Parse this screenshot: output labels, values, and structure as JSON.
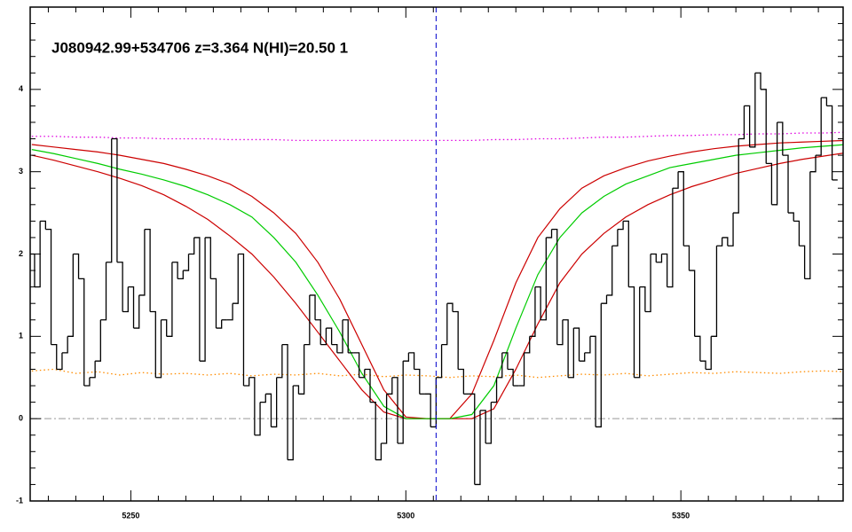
{
  "chart_data": {
    "type": "spectrum",
    "title": "J080942.99+534706 z=3.364 N(HI)=20.50 1",
    "xlim": [
      5231.7,
      5379.5
    ],
    "ylim": [
      -1,
      5
    ],
    "xticks": [
      5250,
      5300,
      5350
    ],
    "yticks": [
      -1,
      0,
      1,
      2,
      3,
      4
    ],
    "xminorticks": [
      5235,
      5240,
      5245,
      5255,
      5260,
      5265,
      5270,
      5275,
      5280,
      5285,
      5290,
      5295,
      5305,
      5310,
      5315,
      5320,
      5325,
      5330,
      5335,
      5340,
      5345,
      5355,
      5360,
      5365,
      5370,
      5375
    ],
    "yminorticks": [
      -0.8,
      -0.6,
      -0.4,
      -0.2,
      0.2,
      0.4,
      0.6,
      0.8,
      1.2,
      1.4,
      1.6,
      1.8,
      2.2,
      2.4,
      2.6,
      2.8,
      3.2,
      3.4,
      3.6,
      3.8,
      4.2,
      4.4,
      4.6,
      4.8
    ],
    "flux": {
      "color": "#000000",
      "x": [
        5232,
        5233,
        5234,
        5235,
        5236,
        5237,
        5238,
        5239,
        5240,
        5241,
        5242,
        5243,
        5244,
        5245,
        5246,
        5247,
        5248,
        5249,
        5250,
        5251,
        5252,
        5253,
        5254,
        5255,
        5256,
        5257,
        5258,
        5259,
        5260,
        5261,
        5262,
        5263,
        5264,
        5265,
        5266,
        5267,
        5268,
        5269,
        5270,
        5271,
        5272,
        5273,
        5274,
        5275,
        5276,
        5277,
        5278,
        5279,
        5280,
        5281,
        5282,
        5283,
        5284,
        5285,
        5286,
        5287,
        5288,
        5289,
        5290,
        5291,
        5292,
        5293,
        5294,
        5295,
        5296,
        5297,
        5298,
        5299,
        5300,
        5301,
        5302,
        5303,
        5304,
        5305,
        5306,
        5307,
        5308,
        5309,
        5310,
        5311,
        5312,
        5313,
        5314,
        5315,
        5316,
        5317,
        5318,
        5319,
        5320,
        5321,
        5322,
        5323,
        5324,
        5325,
        5326,
        5327,
        5328,
        5329,
        5330,
        5331,
        5332,
        5333,
        5334,
        5335,
        5336,
        5337,
        5338,
        5339,
        5340,
        5341,
        5342,
        5343,
        5344,
        5345,
        5346,
        5347,
        5348,
        5349,
        5350,
        5351,
        5352,
        5353,
        5354,
        5355,
        5356,
        5357,
        5358,
        5359,
        5360,
        5361,
        5362,
        5363,
        5364,
        5365,
        5366,
        5367,
        5368,
        5369,
        5370,
        5371,
        5372,
        5373,
        5374,
        5375,
        5376,
        5377,
        5378
      ],
      "values": [
        2.0,
        1.6,
        2.4,
        2.3,
        0.9,
        0.6,
        0.8,
        1.0,
        2.0,
        1.7,
        0.4,
        0.5,
        0.7,
        1.2,
        1.9,
        3.4,
        1.9,
        1.3,
        1.6,
        1.1,
        1.5,
        2.3,
        1.3,
        0.5,
        1.2,
        1.0,
        1.9,
        1.7,
        1.8,
        2.0,
        2.2,
        0.7,
        2.2,
        1.7,
        1.1,
        1.2,
        1.2,
        1.4,
        2.0,
        0.4,
        0.5,
        -0.2,
        0.2,
        0.3,
        -0.1,
        0.5,
        0.9,
        -0.5,
        0.4,
        0.3,
        0.9,
        1.5,
        1.2,
        0.9,
        1.1,
        0.9,
        0.8,
        1.2,
        0.8,
        0.8,
        0.5,
        0.6,
        0.2,
        -0.5,
        -0.3,
        0.3,
        0.5,
        -0.3,
        0.7,
        0.8,
        0.6,
        0.3,
        0.3,
        -0.1,
        0.5,
        0.9,
        1.4,
        1.3,
        0.6,
        0.3,
        0.3,
        -0.8,
        0.1,
        -0.3,
        0.2,
        0.5,
        0.8,
        0.6,
        0.4,
        0.4,
        0.8,
        1.0,
        1.6,
        1.2,
        2.2,
        2.3,
        0.9,
        1.2,
        0.5,
        1.1,
        0.7,
        0.8,
        1.0,
        -0.1,
        1.4,
        1.5,
        2.1,
        2.3,
        2.4,
        1.6,
        0.5,
        1.6,
        1.3,
        2.0,
        1.9,
        2.0,
        1.6,
        2.8,
        3.0,
        2.1,
        1.8,
        1.0,
        0.7,
        0.6,
        1.0,
        2.1,
        2.2,
        2.1,
        2.5,
        3.4,
        3.8,
        3.3,
        4.2,
        4.0,
        3.1,
        2.6,
        3.6,
        3.2,
        2.5,
        2.4,
        2.1,
        1.7,
        3.0,
        3.2,
        3.9,
        3.8,
        2.9
      ]
    },
    "models": {
      "x": [
        5232,
        5236,
        5240,
        5244,
        5248,
        5252,
        5256,
        5260,
        5264,
        5268,
        5272,
        5276,
        5280,
        5284,
        5288,
        5292,
        5296,
        5300,
        5304,
        5308,
        5312,
        5316,
        5320,
        5324,
        5328,
        5332,
        5336,
        5340,
        5344,
        5348,
        5352,
        5356,
        5360,
        5364,
        5368,
        5372,
        5376,
        5380
      ],
      "series": [
        {
          "color": "#e000e0",
          "style": "dotted",
          "values": [
            3.43,
            3.43,
            3.42,
            3.42,
            3.41,
            3.41,
            3.4,
            3.4,
            3.4,
            3.39,
            3.39,
            3.39,
            3.38,
            3.38,
            3.38,
            3.38,
            3.38,
            3.38,
            3.38,
            3.38,
            3.38,
            3.39,
            3.39,
            3.4,
            3.4,
            3.41,
            3.42,
            3.42,
            3.43,
            3.44,
            3.44,
            3.45,
            3.45,
            3.46,
            3.46,
            3.47,
            3.47,
            3.48
          ]
        },
        {
          "color": "#ff8c00",
          "style": "dotted",
          "values": [
            0.58,
            0.6,
            0.55,
            0.57,
            0.53,
            0.56,
            0.54,
            0.55,
            0.53,
            0.55,
            0.52,
            0.54,
            0.53,
            0.55,
            0.52,
            0.54,
            0.51,
            0.53,
            0.52,
            0.5,
            0.52,
            0.51,
            0.53,
            0.5,
            0.52,
            0.54,
            0.53,
            0.55,
            0.52,
            0.54,
            0.56,
            0.55,
            0.57,
            0.56,
            0.55,
            0.57,
            0.58,
            0.57
          ]
        },
        {
          "color": "#cc0000",
          "style": "solid",
          "values": [
            3.33,
            3.3,
            3.27,
            3.24,
            3.2,
            3.15,
            3.1,
            3.03,
            2.95,
            2.85,
            2.7,
            2.5,
            2.25,
            1.9,
            1.45,
            0.9,
            0.35,
            0.02,
            0,
            0,
            0.3,
            0.95,
            1.65,
            2.2,
            2.55,
            2.8,
            2.95,
            3.05,
            3.13,
            3.19,
            3.24,
            3.28,
            3.31,
            3.33,
            3.35,
            3.36,
            3.37,
            3.38
          ]
        },
        {
          "color": "#cc0000",
          "style": "solid",
          "values": [
            3.2,
            3.14,
            3.07,
            3.0,
            2.92,
            2.83,
            2.72,
            2.58,
            2.42,
            2.22,
            2.0,
            1.72,
            1.4,
            1.05,
            0.7,
            0.35,
            0.08,
            0,
            0,
            0,
            0,
            0.12,
            0.6,
            1.15,
            1.65,
            2.0,
            2.25,
            2.45,
            2.6,
            2.72,
            2.82,
            2.9,
            2.98,
            3.04,
            3.1,
            3.15,
            3.19,
            3.23
          ]
        },
        {
          "color": "#00cc00",
          "style": "solid",
          "values": [
            3.27,
            3.22,
            3.16,
            3.1,
            3.03,
            2.97,
            2.9,
            2.82,
            2.72,
            2.6,
            2.45,
            2.2,
            1.9,
            1.5,
            1.05,
            0.55,
            0.15,
            0,
            0,
            0,
            0.05,
            0.4,
            1.1,
            1.75,
            2.2,
            2.5,
            2.7,
            2.85,
            2.95,
            3.05,
            3.1,
            3.15,
            3.2,
            3.23,
            3.26,
            3.29,
            3.31,
            3.33
          ]
        }
      ]
    },
    "hlines": [
      {
        "y": 0,
        "color": "#999999",
        "style": "dashdot"
      }
    ],
    "vlines": [
      {
        "x": 5305.5,
        "color": "#0000cc",
        "style": "dashed"
      }
    ]
  }
}
